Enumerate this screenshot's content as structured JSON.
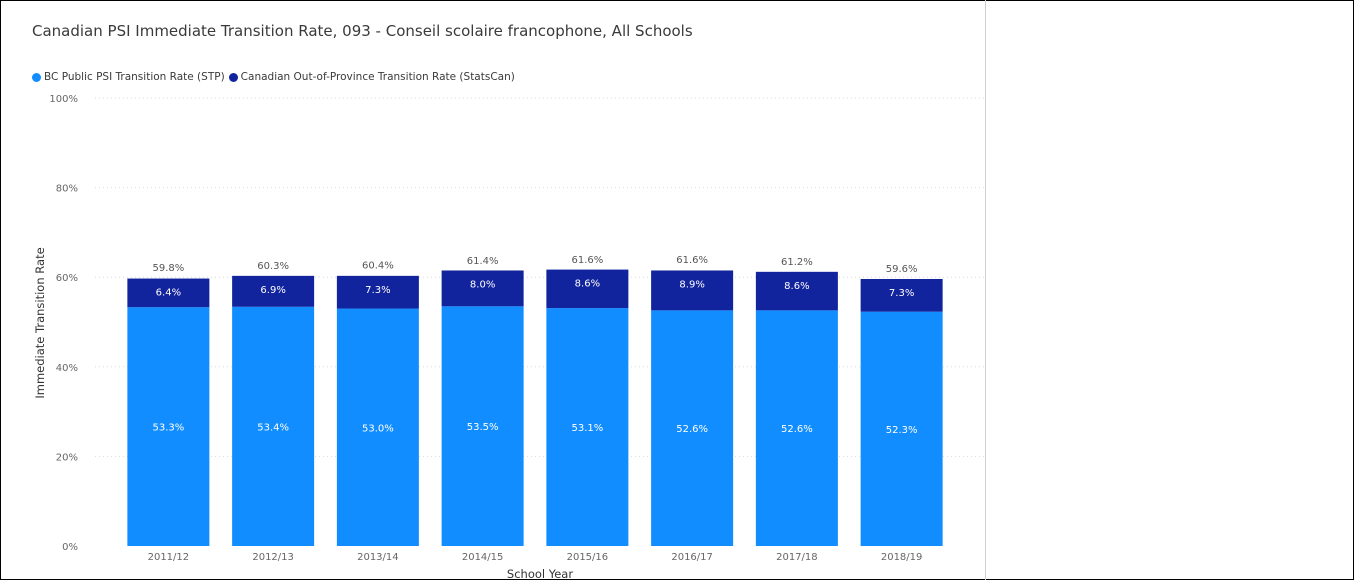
{
  "title": "Canadian PSI Immediate Transition Rate, 093 - Conseil scolaire francophone, All Schools",
  "legend": [
    {
      "label": "BC Public PSI Transition Rate (STP)",
      "color": "#118dff"
    },
    {
      "label": "Canadian Out-of-Province Transition Rate (StatsCan)",
      "color": "#12239e"
    }
  ],
  "chart_data": {
    "type": "bar",
    "stacked": true,
    "categories": [
      "2011/12",
      "2012/13",
      "2013/14",
      "2014/15",
      "2015/16",
      "2016/17",
      "2017/18",
      "2018/19"
    ],
    "series": [
      {
        "name": "BC Public PSI Transition Rate (STP)",
        "color": "#118dff",
        "values": [
          53.3,
          53.4,
          53.0,
          53.5,
          53.1,
          52.6,
          52.6,
          52.3
        ],
        "labels": [
          "53.3%",
          "53.4%",
          "53.0%",
          "53.5%",
          "53.1%",
          "52.6%",
          "52.6%",
          "52.3%"
        ]
      },
      {
        "name": "Canadian Out-of-Province Transition Rate (StatsCan)",
        "color": "#12239e",
        "values": [
          6.4,
          6.9,
          7.3,
          8.0,
          8.6,
          8.9,
          8.6,
          7.3
        ],
        "labels": [
          "6.4%",
          "6.9%",
          "7.3%",
          "8.0%",
          "8.6%",
          "8.9%",
          "8.6%",
          "7.3%"
        ]
      }
    ],
    "totals": [
      59.8,
      60.3,
      60.4,
      61.4,
      61.6,
      61.6,
      61.2,
      59.6
    ],
    "total_labels": [
      "59.8%",
      "60.3%",
      "60.4%",
      "61.4%",
      "61.6%",
      "61.6%",
      "61.2%",
      "59.6%"
    ],
    "ylim": [
      0,
      100
    ],
    "yticks": [
      0,
      20,
      40,
      60,
      80,
      100
    ],
    "ytick_labels": [
      "0%",
      "20%",
      "40%",
      "60%",
      "80%",
      "100%"
    ],
    "xlabel": "School Year",
    "ylabel": "Immediate Transition Rate",
    "grid": true,
    "legend_position": "top-left"
  }
}
